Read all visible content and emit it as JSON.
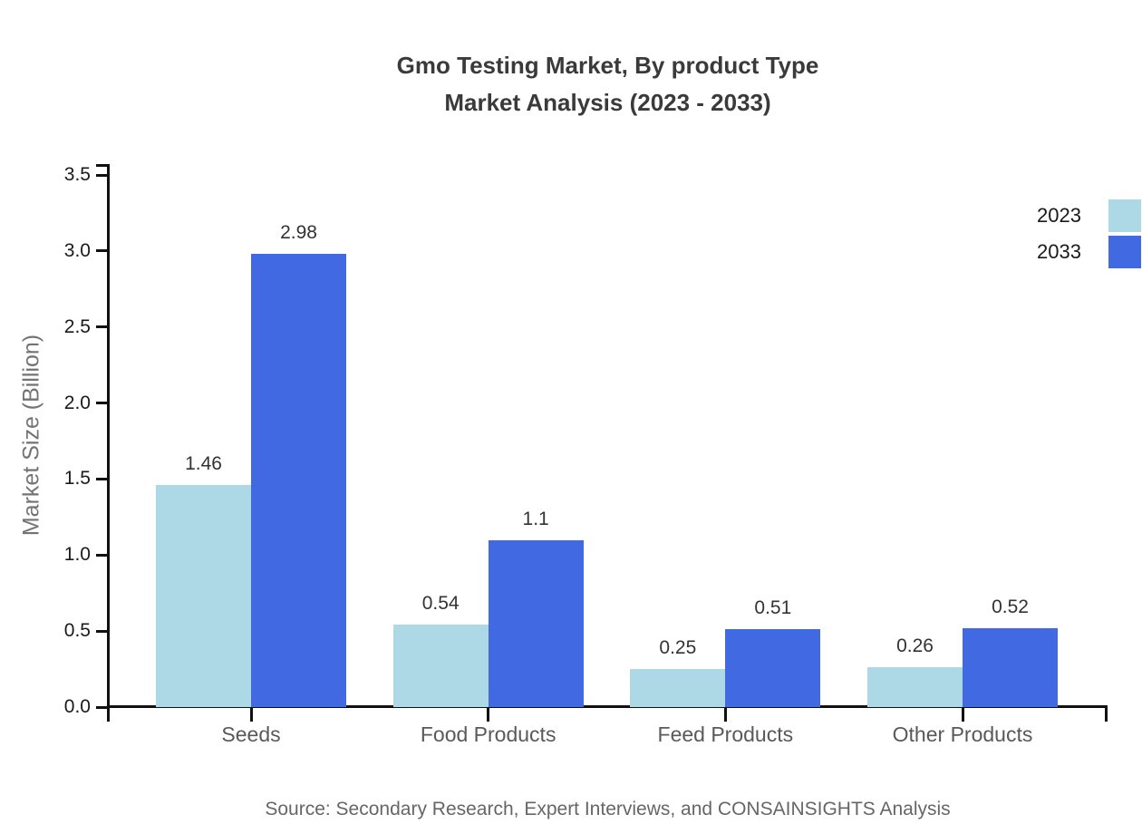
{
  "source": "Source: Secondary Research, Expert Interviews, and CONSAINSIGHTS Analysis",
  "colors": {
    "series_2023": "#ADD8E6",
    "series_2033": "#4169E1",
    "axis": "#111111",
    "title_text": "#3a3a3a",
    "category_text": "#595959",
    "background": "#ffffff"
  },
  "chart_data": {
    "type": "bar",
    "title": "Gmo Testing Market, By product Type",
    "subtitle": "Market Analysis (2023 - 2033)",
    "categories": [
      "Seeds",
      "Food Products",
      "Feed Products",
      "Other Products"
    ],
    "series": [
      {
        "name": "2023",
        "color": "#ADD8E6",
        "values": [
          1.46,
          0.54,
          0.25,
          0.26
        ]
      },
      {
        "name": "2033",
        "color": "#4169E1",
        "values": [
          2.98,
          1.1,
          0.51,
          0.52
        ]
      }
    ],
    "xlabel": "",
    "ylabel": "Market Size (Billion)",
    "ylim": [
      0,
      3.5
    ],
    "yticks": [
      0.0,
      0.5,
      1.0,
      1.5,
      2.0,
      2.5,
      3.0,
      3.5
    ],
    "ytick_labels": [
      "0.0",
      "0.5",
      "1.0",
      "1.5",
      "2.0",
      "2.5",
      "3.0",
      "3.5"
    ],
    "value_labels": [
      "1.46",
      "0.54",
      "0.25",
      "0.26",
      "2.98",
      "1.1",
      "0.51",
      "0.52"
    ],
    "grid": false,
    "legend_position": "upper right"
  }
}
